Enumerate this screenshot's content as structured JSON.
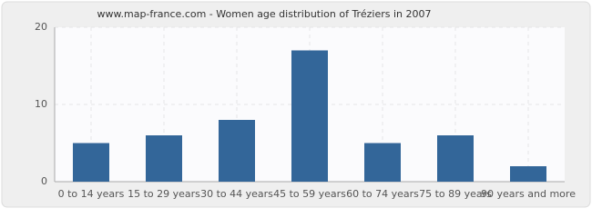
{
  "chart_data": {
    "type": "bar",
    "title": "www.map-france.com - Women age distribution of Tréziers in 2007",
    "categories": [
      "0 to 14 years",
      "15 to 29 years",
      "30 to 44 years",
      "45 to 59 years",
      "60 to 74 years",
      "75 to 89 years",
      "90 years and more"
    ],
    "values": [
      5,
      6,
      8,
      17,
      5,
      6,
      2
    ],
    "color": "#336699",
    "ylim": [
      0,
      20
    ],
    "yticks": [
      0,
      10,
      20
    ],
    "grid": true
  }
}
